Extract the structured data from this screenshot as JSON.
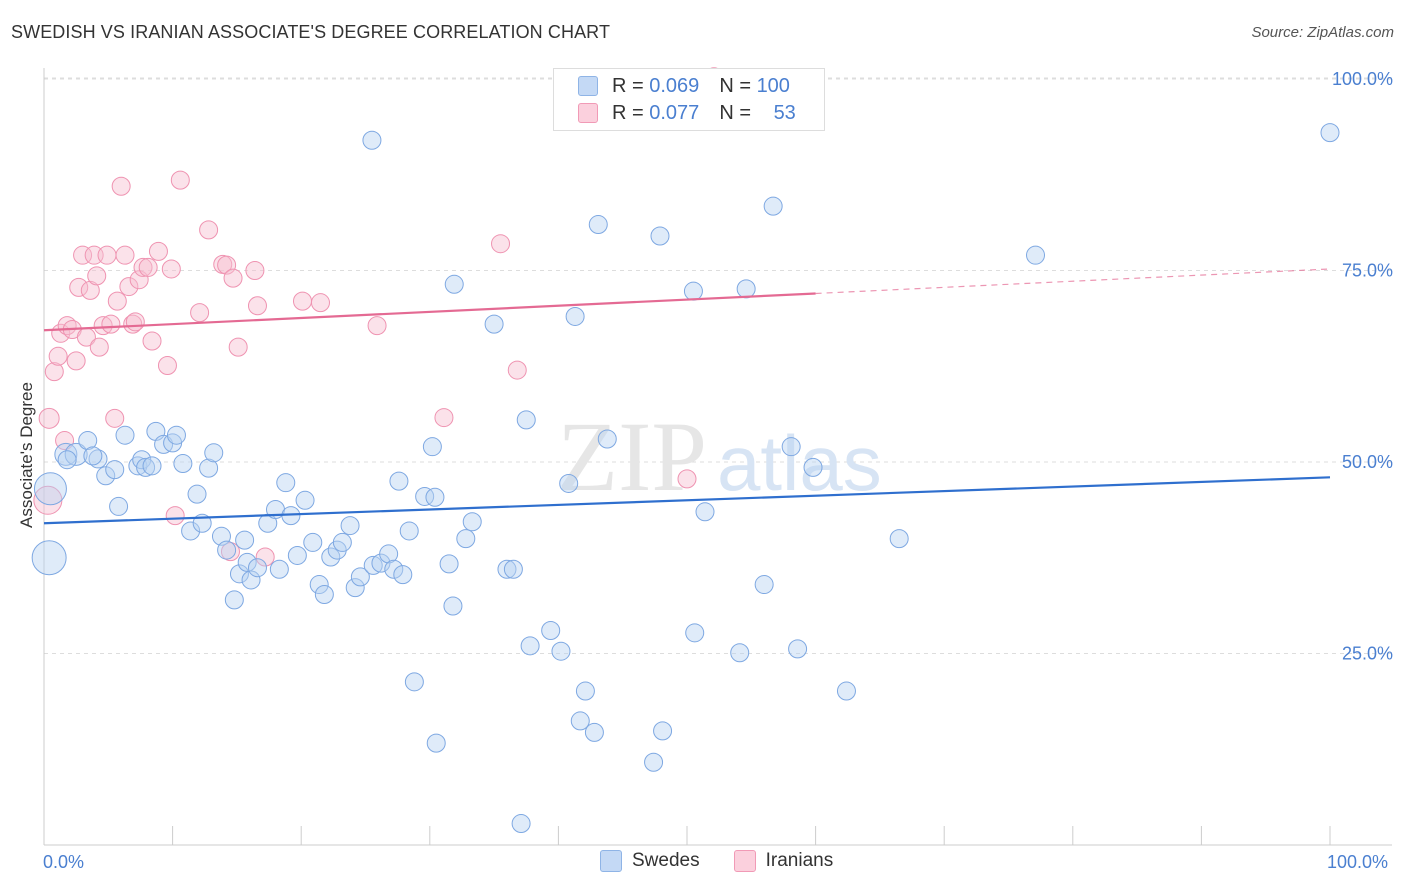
{
  "title": "SWEDISH VS IRANIAN ASSOCIATE'S DEGREE CORRELATION CHART",
  "source": "Source: ZipAtlas.com",
  "watermark": {
    "zip": "ZIP",
    "atlas": "atlas"
  },
  "legend": {
    "rows": [
      {
        "r_label": "R =",
        "r_value": "0.069",
        "n_label": "N =",
        "n_value": "100",
        "color": "#a9c8f0"
      },
      {
        "r_label": "R =",
        "r_value": "0.077",
        "n_label": "N =",
        "n_value": "53",
        "color": "#f5b5c8"
      }
    ]
  },
  "bottom_legend": [
    "Swedes",
    "Iranians"
  ],
  "x_axis": {
    "min_label": "0.0%",
    "max_label": "100.0%"
  },
  "y_axis_title": "Associate's Degree",
  "chart_data": {
    "type": "scatter",
    "title": "SWEDISH VS IRANIAN ASSOCIATE'S DEGREE CORRELATION CHART",
    "xlabel": "",
    "ylabel": "Associate's Degree",
    "xlim": [
      0,
      100
    ],
    "ylim": [
      0,
      102
    ],
    "y_ticks": [
      25,
      50,
      75,
      100
    ],
    "y_tick_labels": [
      "25.0%",
      "50.0%",
      "75.0%",
      "100.0%"
    ],
    "grid": "horizontal dashed",
    "legend_position": "top-center",
    "colors": {
      "Swedes": "#6fa0e0",
      "Iranians": "#ef8aaa",
      "Swedes_line": "#2f6fce",
      "Iranians_line": "#e46a93",
      "tick_label": "#4a7fd0"
    },
    "series": [
      {
        "name": "Swedes",
        "r": 0.069,
        "n": 100,
        "trend": {
          "x": [
            0,
            100
          ],
          "y": [
            42.0,
            48.0
          ]
        },
        "points": [
          [
            0.5,
            46.5,
            16
          ],
          [
            0.4,
            37.5,
            17
          ],
          [
            1.7,
            51.0,
            11
          ],
          [
            2.5,
            51.0,
            11
          ],
          [
            1.8,
            50.3,
            9
          ],
          [
            3.4,
            52.8,
            9
          ],
          [
            4.2,
            50.4,
            9
          ],
          [
            3.8,
            50.8,
            9
          ],
          [
            4.8,
            48.2,
            9
          ],
          [
            5.5,
            49.0,
            9
          ],
          [
            5.8,
            44.2,
            9
          ],
          [
            6.3,
            53.5,
            9
          ],
          [
            7.3,
            49.5,
            9
          ],
          [
            7.6,
            50.3,
            9
          ],
          [
            7.9,
            49.3,
            9
          ],
          [
            8.4,
            49.5,
            9
          ],
          [
            8.7,
            54.0,
            9
          ],
          [
            9.3,
            52.3,
            9
          ],
          [
            10.0,
            52.5,
            9
          ],
          [
            10.3,
            53.5,
            9
          ],
          [
            10.8,
            49.8,
            9
          ],
          [
            11.4,
            41.0,
            9
          ],
          [
            11.9,
            45.8,
            9
          ],
          [
            12.3,
            42.0,
            9
          ],
          [
            12.8,
            49.2,
            9
          ],
          [
            13.2,
            51.2,
            9
          ],
          [
            13.8,
            40.3,
            9
          ],
          [
            14.2,
            38.5,
            9
          ],
          [
            14.8,
            32.0,
            9
          ],
          [
            15.2,
            35.4,
            9
          ],
          [
            15.8,
            36.9,
            9
          ],
          [
            16.1,
            34.6,
            9
          ],
          [
            16.6,
            36.2,
            9
          ],
          [
            17.4,
            42.0,
            9
          ],
          [
            18.0,
            43.8,
            9
          ],
          [
            18.3,
            36.0,
            9
          ],
          [
            18.8,
            47.3,
            9
          ],
          [
            19.2,
            43.0,
            9
          ],
          [
            19.7,
            37.8,
            9
          ],
          [
            20.3,
            45.0,
            9
          ],
          [
            20.9,
            39.5,
            9
          ],
          [
            21.4,
            34.0,
            9
          ],
          [
            21.8,
            32.7,
            9
          ],
          [
            22.3,
            37.6,
            9
          ],
          [
            22.8,
            38.5,
            9
          ],
          [
            23.2,
            39.5,
            9
          ],
          [
            23.8,
            41.7,
            9
          ],
          [
            24.2,
            33.6,
            9
          ],
          [
            24.6,
            35.0,
            9
          ],
          [
            25.6,
            36.5,
            9
          ],
          [
            26.2,
            36.8,
            9
          ],
          [
            26.8,
            38.0,
            9
          ],
          [
            27.2,
            36.0,
            9
          ],
          [
            27.9,
            35.3,
            9
          ],
          [
            28.4,
            41.0,
            9
          ],
          [
            27.6,
            47.5,
            9
          ],
          [
            29.6,
            45.5,
            9
          ],
          [
            30.4,
            45.4,
            9
          ],
          [
            30.2,
            52.0,
            9
          ],
          [
            31.5,
            36.7,
            9
          ],
          [
            31.8,
            31.2,
            9
          ],
          [
            32.8,
            40.0,
            9
          ],
          [
            33.3,
            42.2,
            9
          ],
          [
            36.0,
            36.0,
            9
          ],
          [
            36.5,
            36.0,
            9
          ],
          [
            37.5,
            55.5,
            9
          ],
          [
            37.8,
            26.0,
            9
          ],
          [
            39.4,
            28.0,
            9
          ],
          [
            40.2,
            25.3,
            9
          ],
          [
            40.8,
            47.2,
            9
          ],
          [
            42.1,
            20.1,
            9
          ],
          [
            41.7,
            16.2,
            9
          ],
          [
            42.8,
            14.7,
            9
          ],
          [
            43.8,
            53.0,
            9
          ],
          [
            47.4,
            10.8,
            9
          ],
          [
            48.1,
            14.9,
            9
          ],
          [
            50.6,
            27.7,
            9
          ],
          [
            51.4,
            43.5,
            9
          ],
          [
            54.1,
            25.1,
            9
          ],
          [
            56.0,
            34.0,
            9
          ],
          [
            58.6,
            25.6,
            9
          ],
          [
            59.8,
            49.3,
            9
          ],
          [
            62.4,
            20.1,
            9
          ],
          [
            66.5,
            40.0,
            9
          ],
          [
            58.1,
            52.0,
            9
          ],
          [
            37.1,
            2.8,
            9
          ],
          [
            28.8,
            21.3,
            9
          ],
          [
            30.5,
            13.3,
            9
          ],
          [
            25.5,
            92.0,
            9
          ],
          [
            31.9,
            73.2,
            9
          ],
          [
            35.0,
            68.0,
            9
          ],
          [
            41.3,
            69.0,
            9
          ],
          [
            43.1,
            81.0,
            9
          ],
          [
            47.9,
            79.5,
            9
          ],
          [
            50.5,
            72.3,
            9
          ],
          [
            54.6,
            72.6,
            9
          ],
          [
            56.7,
            83.4,
            9
          ],
          [
            77.1,
            77.0,
            9
          ],
          [
            100.0,
            93.0,
            9
          ],
          [
            15.6,
            39.8,
            9
          ]
        ]
      },
      {
        "name": "Iranians",
        "r": 0.077,
        "n": 53,
        "trend": {
          "x": [
            0,
            60
          ],
          "y": [
            67.2,
            72.0
          ],
          "dashed_extension": {
            "x": [
              60,
              100
            ],
            "y": [
              72.0,
              75.2
            ]
          }
        },
        "points": [
          [
            0.3,
            45.0,
            14
          ],
          [
            0.4,
            55.7,
            10
          ],
          [
            0.8,
            61.8,
            9
          ],
          [
            1.1,
            63.8,
            9
          ],
          [
            1.3,
            66.8,
            9
          ],
          [
            1.6,
            52.8,
            9
          ],
          [
            1.8,
            67.8,
            9
          ],
          [
            2.2,
            67.3,
            9
          ],
          [
            2.5,
            63.2,
            9
          ],
          [
            2.7,
            72.8,
            9
          ],
          [
            3.0,
            77.0,
            9
          ],
          [
            3.3,
            66.3,
            9
          ],
          [
            3.6,
            72.4,
            9
          ],
          [
            3.9,
            77.0,
            9
          ],
          [
            4.1,
            74.3,
            9
          ],
          [
            4.3,
            65.0,
            9
          ],
          [
            4.6,
            67.8,
            9
          ],
          [
            4.9,
            77.0,
            9
          ],
          [
            5.2,
            68.0,
            9
          ],
          [
            5.5,
            55.7,
            9
          ],
          [
            5.7,
            71.0,
            9
          ],
          [
            6.0,
            86.0,
            9
          ],
          [
            6.3,
            77.0,
            9
          ],
          [
            6.6,
            72.9,
            9
          ],
          [
            6.9,
            68.0,
            9
          ],
          [
            7.1,
            68.3,
            9
          ],
          [
            7.4,
            73.8,
            9
          ],
          [
            7.7,
            75.4,
            9
          ],
          [
            8.1,
            75.4,
            9
          ],
          [
            8.4,
            65.8,
            9
          ],
          [
            8.9,
            77.5,
            9
          ],
          [
            9.6,
            62.6,
            9
          ],
          [
            9.9,
            75.2,
            9
          ],
          [
            10.2,
            43.0,
            9
          ],
          [
            10.6,
            86.8,
            9
          ],
          [
            12.1,
            69.5,
            9
          ],
          [
            12.8,
            80.3,
            9
          ],
          [
            13.9,
            75.8,
            9
          ],
          [
            14.2,
            75.7,
            9
          ],
          [
            14.5,
            38.3,
            9
          ],
          [
            14.7,
            74.0,
            9
          ],
          [
            15.1,
            65.0,
            9
          ],
          [
            16.4,
            75.0,
            9
          ],
          [
            16.6,
            70.4,
            9
          ],
          [
            17.2,
            37.6,
            9
          ],
          [
            20.1,
            71.0,
            9
          ],
          [
            21.5,
            70.8,
            9
          ],
          [
            25.9,
            67.8,
            9
          ],
          [
            31.1,
            55.8,
            9
          ],
          [
            35.5,
            78.5,
            9
          ],
          [
            36.8,
            62.0,
            9
          ],
          [
            50.0,
            47.8,
            9
          ],
          [
            52.1,
            100.3,
            9
          ]
        ]
      }
    ]
  }
}
